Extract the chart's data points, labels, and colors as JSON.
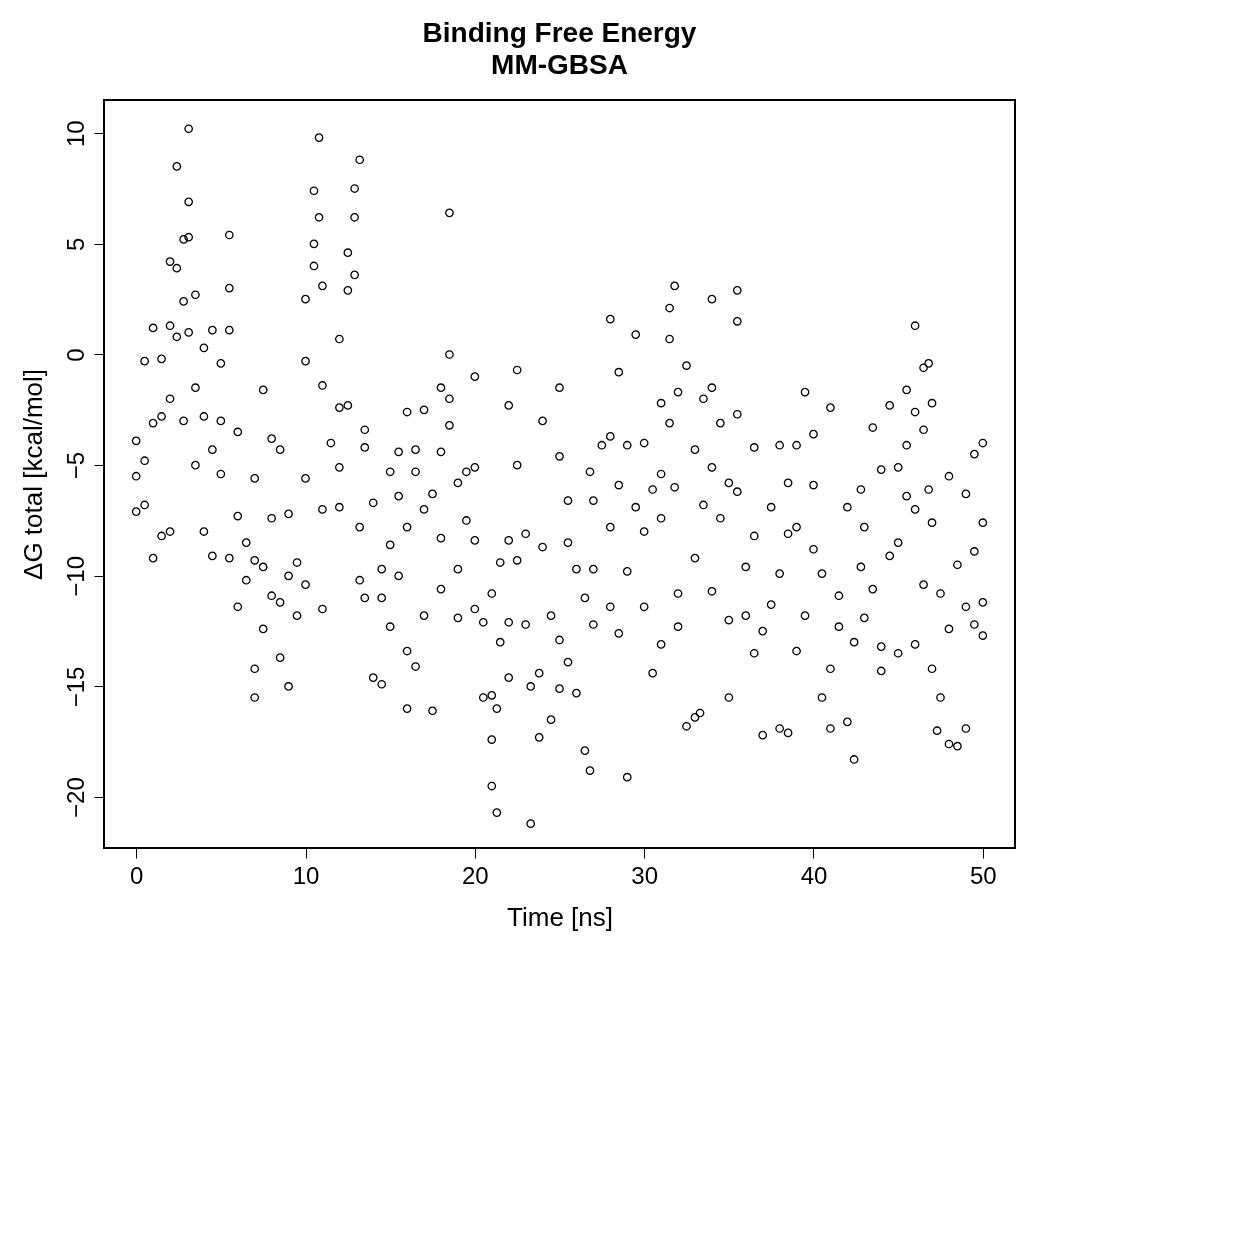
{
  "chart_data": {
    "type": "scatter",
    "title": "Binding Free Energy",
    "subtitle": "MM-GBSA",
    "xlabel": "Time [ns]",
    "ylabel": "ΔG total [kcal/mol]",
    "xlim": [
      -1.9,
      51.9
    ],
    "ylim": [
      -22.3,
      11.5
    ],
    "xticks": [
      0,
      10,
      20,
      30,
      40,
      50
    ],
    "yticks": [
      -20,
      -15,
      -10,
      -5,
      0,
      5,
      10
    ],
    "grid": false,
    "marker": "circle",
    "series": [
      {
        "color": "#000000",
        "x": [
          0,
          0,
          0,
          0.5,
          0.5,
          0.5,
          1,
          1,
          1,
          1.5,
          1.5,
          1.5,
          2,
          2,
          2,
          2,
          2.4,
          2.4,
          2.4,
          2.8,
          2.8,
          2.8,
          3.1,
          3.1,
          3.1,
          3.1,
          3.5,
          3.5,
          3.5,
          4,
          4,
          4,
          4.5,
          4.5,
          4.5,
          5,
          5,
          5,
          5.5,
          5.5,
          5.5,
          5.5,
          6,
          6,
          6,
          6.5,
          6.5,
          7,
          7,
          7,
          7,
          7.5,
          7.5,
          7.5,
          8,
          8,
          8,
          8.5,
          8.5,
          8.5,
          9,
          9,
          9,
          9.5,
          9.5,
          10,
          10,
          10,
          10,
          10.5,
          10.5,
          10.5,
          10.8,
          10.8,
          11,
          11,
          11,
          11,
          11.5,
          12,
          12,
          12,
          12,
          12.5,
          12.5,
          12.5,
          12.9,
          12.9,
          12.9,
          13.2,
          13.2,
          13.2,
          13.5,
          13.5,
          13.5,
          14,
          14,
          14.5,
          14.5,
          14.5,
          15,
          15,
          15,
          15.5,
          15.5,
          15.5,
          16,
          16,
          16,
          16,
          16.5,
          16.5,
          16.5,
          17,
          17,
          17,
          17.5,
          17.5,
          18,
          18,
          18,
          18,
          18.5,
          18.5,
          18.5,
          18.5,
          19,
          19,
          19,
          19.5,
          19.5,
          20,
          20,
          20,
          20,
          20.5,
          20.5,
          21,
          21,
          21,
          21,
          21.3,
          21.3,
          21.5,
          21.5,
          22,
          22,
          22,
          22,
          22.5,
          22.5,
          22.5,
          23,
          23,
          23.3,
          23.3,
          23.8,
          23.8,
          24,
          24,
          24.5,
          24.5,
          25,
          25,
          25,
          25,
          25.5,
          25.5,
          25.5,
          26,
          26,
          26.5,
          26.5,
          26.8,
          26.8,
          27,
          27,
          27,
          27.5,
          28,
          28,
          28,
          28,
          28.5,
          28.5,
          28.5,
          29,
          29,
          29,
          29.5,
          29.5,
          30,
          30,
          30,
          30.5,
          30.5,
          31,
          31,
          31,
          31,
          31.5,
          31.5,
          31.5,
          31.8,
          31.8,
          32,
          32,
          32,
          32.5,
          32.5,
          33,
          33,
          33,
          33.3,
          33.5,
          33.5,
          34,
          34,
          34,
          34,
          34.5,
          34.5,
          35,
          35,
          35,
          35.5,
          35.5,
          35.5,
          35.5,
          36,
          36,
          36.5,
          36.5,
          36.5,
          37,
          37,
          37.5,
          37.5,
          38,
          38,
          38,
          38.5,
          38.5,
          38.5,
          39,
          39,
          39,
          39.5,
          39.5,
          40,
          40,
          40,
          40.5,
          40.5,
          41,
          41,
          41,
          41.5,
          41.5,
          42,
          42,
          42.4,
          42.4,
          42.8,
          42.8,
          43,
          43,
          43.5,
          43.5,
          44,
          44,
          44,
          44.5,
          44.5,
          45,
          45,
          45,
          45.5,
          45.5,
          45.5,
          46,
          46,
          46,
          46,
          46.5,
          46.5,
          46.5,
          46.8,
          46.8,
          47,
          47,
          47,
          47.3,
          47.5,
          47.5,
          48,
          48,
          48,
          48.5,
          48.5,
          49,
          49,
          49,
          49.5,
          49.5,
          49.5,
          50,
          50,
          50,
          50
        ],
        "values": [
          -3.9,
          -7.1,
          -5.5,
          -0.3,
          -4.8,
          -6.8,
          1.2,
          -3.1,
          -9.2,
          -0.2,
          -2.8,
          -8.2,
          1.3,
          -2.0,
          -8.0,
          4.2,
          8.5,
          0.8,
          3.9,
          5.2,
          2.4,
          -3.0,
          10.2,
          6.9,
          5.3,
          1.0,
          2.7,
          -1.5,
          -5.0,
          0.3,
          -2.8,
          -8.0,
          1.1,
          -4.3,
          -9.1,
          -0.4,
          -3.0,
          -5.4,
          5.4,
          1.1,
          3.0,
          -9.2,
          -3.5,
          -7.3,
          -11.4,
          -8.5,
          -10.2,
          -5.6,
          -9.3,
          -14.2,
          -15.5,
          -1.6,
          -9.6,
          -12.4,
          -3.8,
          -7.4,
          -10.9,
          -4.3,
          -11.2,
          -13.7,
          -7.2,
          -10.0,
          -15.0,
          -9.4,
          -11.8,
          2.5,
          -5.6,
          -10.4,
          -0.3,
          7.4,
          5.0,
          4.0,
          9.8,
          6.2,
          3.1,
          -1.4,
          -7.0,
          -11.5,
          -4.0,
          0.7,
          -2.4,
          -5.1,
          -6.9,
          4.6,
          2.9,
          -2.3,
          7.5,
          6.2,
          3.6,
          8.8,
          -7.8,
          -10.2,
          -3.4,
          -4.2,
          -11.0,
          -6.7,
          -14.6,
          -9.7,
          -11.0,
          -14.9,
          -5.3,
          -8.6,
          -12.3,
          -4.4,
          -6.4,
          -10.0,
          -2.6,
          -7.8,
          -13.4,
          -16.0,
          -4.3,
          -5.3,
          -14.1,
          -2.5,
          -7.0,
          -11.8,
          -16.1,
          -6.3,
          -1.5,
          -4.4,
          -8.3,
          -10.6,
          6.4,
          0.0,
          -2.0,
          -3.2,
          -5.8,
          -9.7,
          -11.9,
          -5.3,
          -7.5,
          -1.0,
          -5.1,
          -8.4,
          -11.5,
          -12.1,
          -15.5,
          -10.8,
          -15.4,
          -17.4,
          -19.5,
          -20.7,
          -16.0,
          -9.4,
          -13.0,
          -2.3,
          -8.4,
          -14.6,
          -12.1,
          -0.7,
          -5.0,
          -9.3,
          -8.1,
          -12.2,
          -21.2,
          -15.0,
          -17.3,
          -14.4,
          -3.0,
          -8.7,
          -11.8,
          -16.5,
          -1.5,
          -4.6,
          -12.9,
          -15.1,
          -6.6,
          -8.5,
          -13.9,
          -9.7,
          -15.3,
          -17.9,
          -11.0,
          -18.8,
          -5.3,
          -6.6,
          -9.7,
          -12.2,
          -4.1,
          1.6,
          -3.7,
          -7.8,
          -11.4,
          -0.8,
          -5.9,
          -12.6,
          -4.1,
          -9.8,
          -19.1,
          0.9,
          -6.9,
          -4.0,
          -8.0,
          -11.4,
          -6.1,
          -14.4,
          -2.2,
          -5.4,
          -7.4,
          -13.1,
          2.1,
          0.7,
          -3.1,
          3.1,
          -6.0,
          -1.7,
          -10.8,
          -12.3,
          -16.8,
          -0.5,
          -4.3,
          -9.2,
          -16.4,
          -16.2,
          -2.0,
          -6.8,
          2.5,
          -1.5,
          -5.1,
          -10.7,
          -3.1,
          -7.4,
          -5.8,
          -12.0,
          -15.5,
          2.9,
          1.5,
          -2.7,
          -6.2,
          -9.6,
          -11.8,
          -4.2,
          -8.2,
          -13.5,
          -12.5,
          -17.2,
          -6.9,
          -11.3,
          -4.1,
          -9.9,
          -16.9,
          -5.8,
          -8.1,
          -17.1,
          -4.1,
          -7.8,
          -13.4,
          -1.7,
          -11.8,
          -3.6,
          -5.9,
          -8.8,
          -9.9,
          -15.5,
          -2.4,
          -14.2,
          -16.9,
          -12.3,
          -10.9,
          -6.9,
          -16.6,
          -18.3,
          -13.0,
          -6.1,
          -9.6,
          -7.8,
          -11.9,
          -3.3,
          -10.6,
          -5.2,
          -13.2,
          -14.3,
          -2.3,
          -9.1,
          -5.1,
          -8.5,
          -13.5,
          -1.6,
          -4.1,
          -6.4,
          1.3,
          -2.6,
          -7.0,
          -13.1,
          -0.6,
          -3.4,
          -10.4,
          -0.4,
          -6.1,
          -2.2,
          -7.6,
          -14.2,
          -17.0,
          -10.8,
          -15.5,
          -12.4,
          -17.6,
          -5.5,
          -17.7,
          -9.5,
          -6.3,
          -11.4,
          -16.9,
          -4.5,
          -8.9,
          -12.2,
          -4.0,
          -7.6,
          -11.2,
          -12.7
        ]
      }
    ]
  }
}
